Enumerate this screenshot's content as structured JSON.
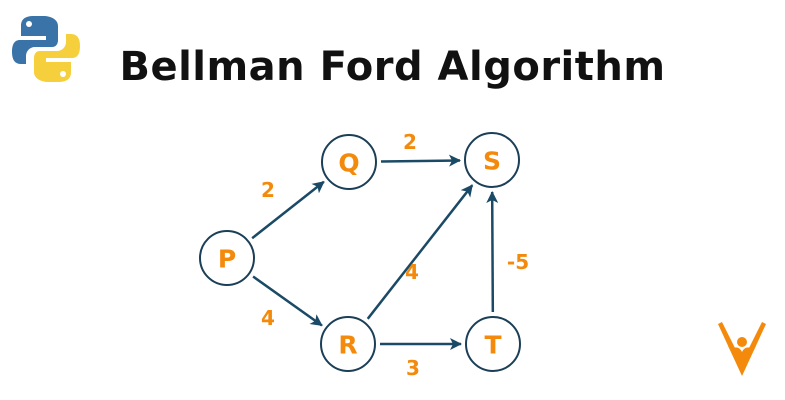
{
  "title": "Bellman Ford Algorithm",
  "colors": {
    "accent": "#f38a0c",
    "edge": "#1b4a66",
    "node_border": "#1b3f57",
    "python_blue": "#3a73a8",
    "python_yellow": "#f6cf3c"
  },
  "icons": {
    "python_logo": "python-logo-icon",
    "brand_logo": "brand-logo-icon"
  },
  "nodes": [
    {
      "id": "P",
      "label": "P"
    },
    {
      "id": "Q",
      "label": "Q"
    },
    {
      "id": "S",
      "label": "S"
    },
    {
      "id": "R",
      "label": "R"
    },
    {
      "id": "T",
      "label": "T"
    }
  ],
  "edges": [
    {
      "from": "P",
      "to": "Q",
      "weight": "2"
    },
    {
      "from": "P",
      "to": "R",
      "weight": "4"
    },
    {
      "from": "Q",
      "to": "S",
      "weight": "2"
    },
    {
      "from": "R",
      "to": "S",
      "weight": "4"
    },
    {
      "from": "R",
      "to": "T",
      "weight": "3"
    },
    {
      "from": "T",
      "to": "S",
      "weight": "-5"
    }
  ]
}
